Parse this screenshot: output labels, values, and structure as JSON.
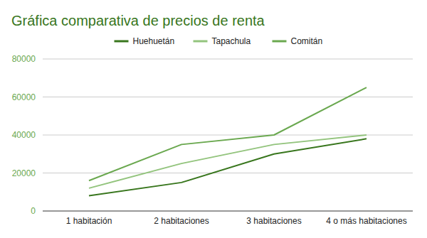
{
  "chart_data": {
    "type": "line",
    "title": "Gráfica comparativa de precios de renta",
    "categories": [
      "1 habitación",
      "2 habitaciones",
      "3 habitaciones",
      "4 o más habitaciones"
    ],
    "series": [
      {
        "name": "Huehuetán",
        "color": "#38761d",
        "values": [
          8000,
          15000,
          30000,
          38000
        ]
      },
      {
        "name": "Tapachula",
        "color": "#93c47d",
        "values": [
          12000,
          25000,
          35000,
          40000
        ]
      },
      {
        "name": "Comitán",
        "color": "#6aa84f",
        "values": [
          16000,
          35000,
          40000,
          65000
        ]
      }
    ],
    "ylim": [
      0,
      80000
    ],
    "yticks": [
      0,
      20000,
      40000,
      60000,
      80000
    ],
    "grid": true,
    "legend": "top"
  }
}
